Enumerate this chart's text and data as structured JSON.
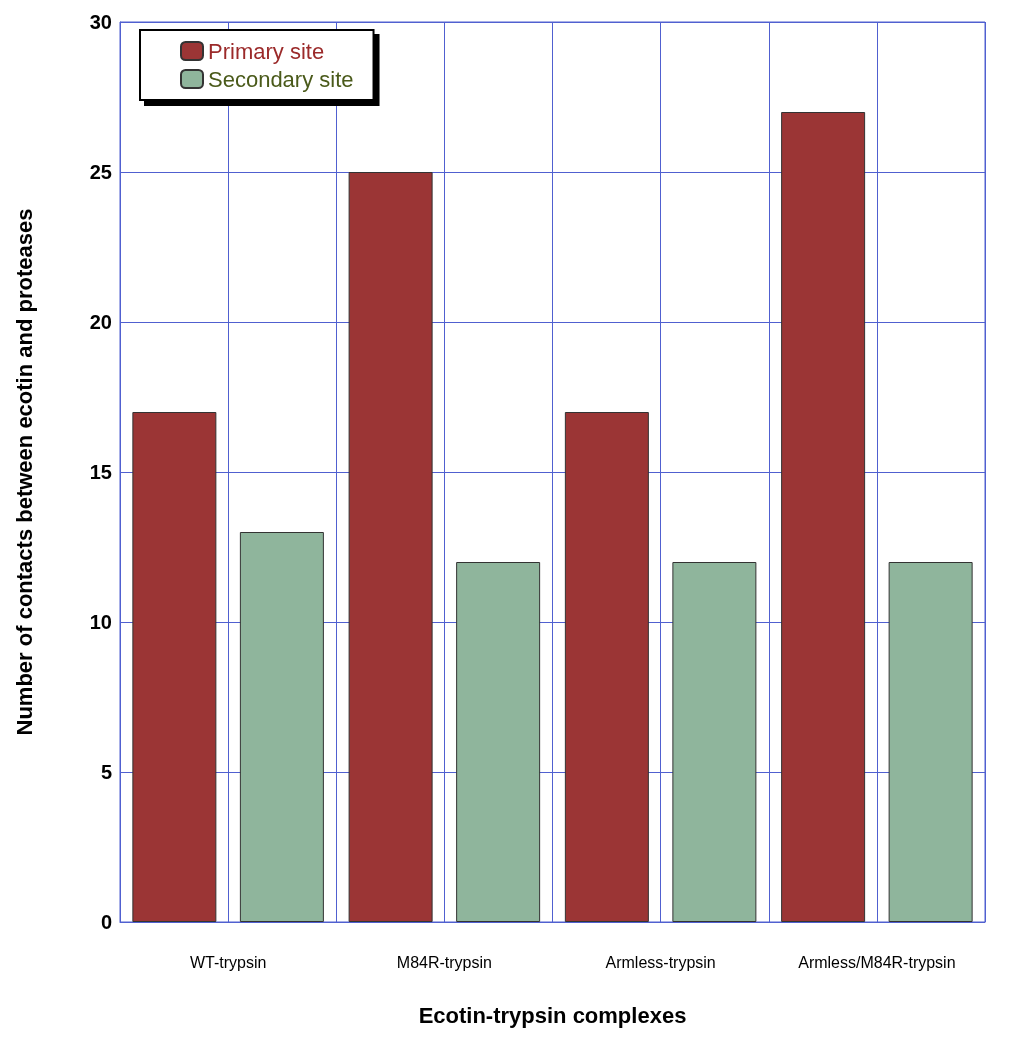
{
  "chart_data": {
    "type": "bar",
    "xlabel": "Ecotin-trypsin complexes",
    "ylabel": "Number of contacts between ecotin and proteases",
    "categories": [
      "WT-trypsin",
      "M84R-trypsin",
      "Armless-trypsin",
      "Armless/M84R-trypsin"
    ],
    "series": [
      {
        "name": "Primary site",
        "color": "#9b3535",
        "values": [
          17,
          25,
          17,
          27
        ]
      },
      {
        "name": "Secondary site",
        "color": "#8fb59c",
        "values": [
          13,
          12,
          12,
          12
        ]
      }
    ],
    "ylim": [
      0,
      30
    ],
    "yticks": [
      0,
      5,
      10,
      15,
      20,
      25,
      30
    ],
    "grid": true,
    "legend": "top left"
  }
}
